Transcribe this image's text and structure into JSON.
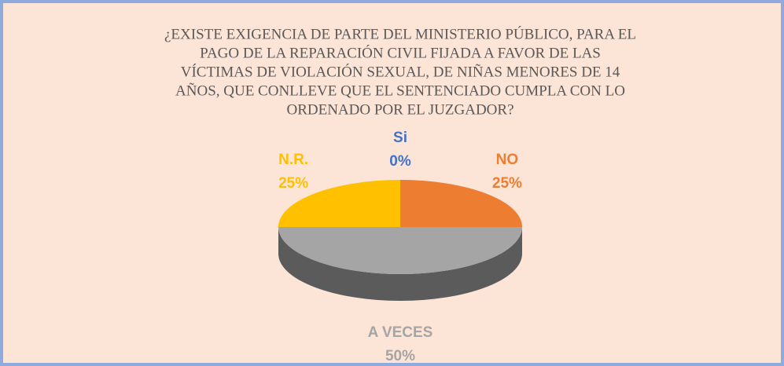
{
  "chart_data": {
    "type": "pie",
    "title": [
      "¿EXISTE EXIGENCIA DE PARTE DEL MINISTERIO PÚBLICO, PARA EL",
      "PAGO DE LA REPARACIÓN CIVIL FIJADA A FAVOR DE LAS",
      "VÍCTIMAS DE VIOLACIÓN SEXUAL, DE NIÑAS MENORES DE 14",
      "AÑOS, QUE CONLLEVE QUE EL SENTENCIADO CUMPLA CON LO",
      "ORDENADO POR EL JUZGADOR?"
    ],
    "categories": [
      "Si",
      "NO",
      "A VECES",
      "N.R."
    ],
    "values": [
      0,
      25,
      50,
      25
    ],
    "value_labels": [
      "0%",
      "25%",
      "50%",
      "25%"
    ],
    "colors": [
      "#4472c4",
      "#ed7d31",
      "#a5a5a5",
      "#ffc000"
    ]
  }
}
